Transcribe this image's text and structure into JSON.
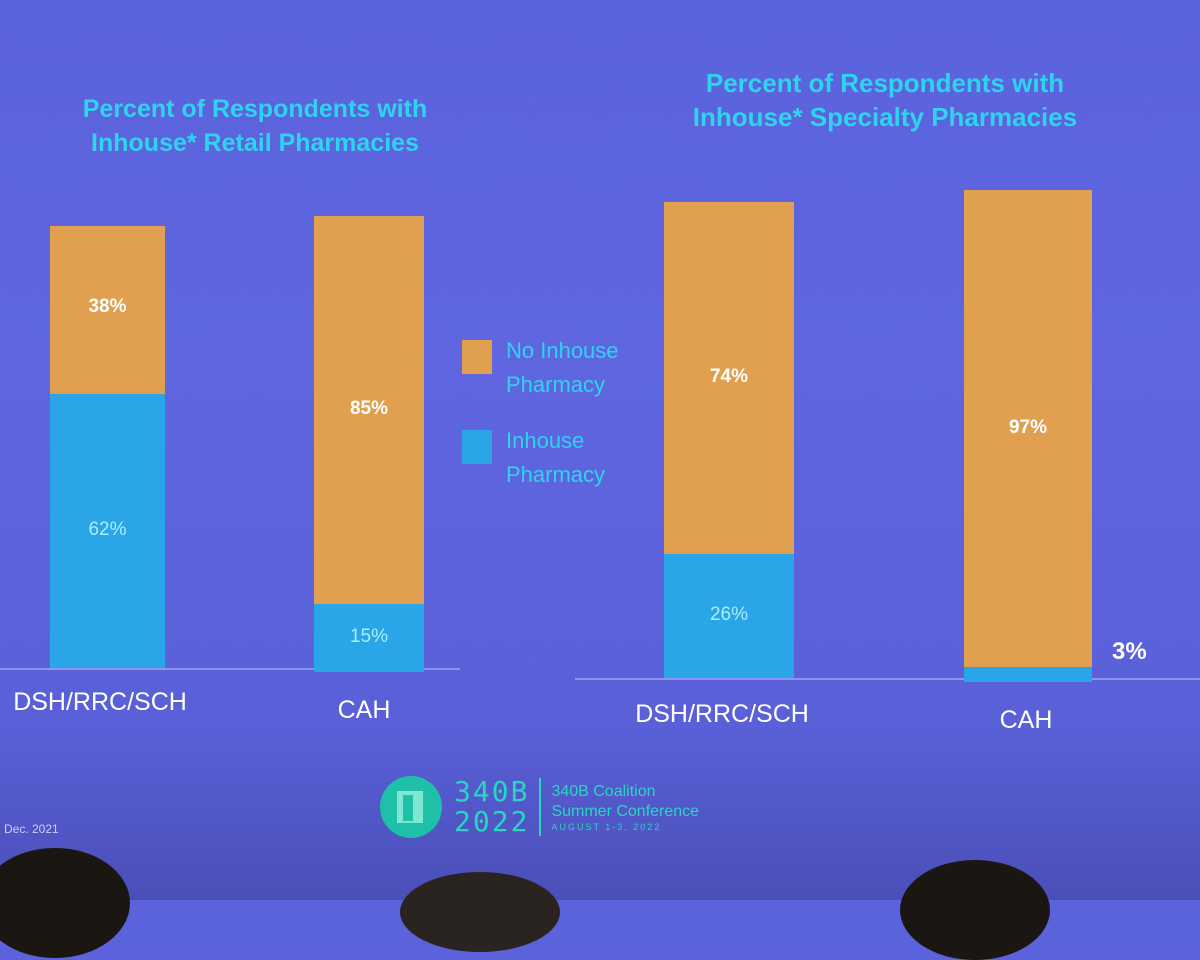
{
  "colors": {
    "no_inhouse": "#e0a050",
    "inhouse": "#2aa6e8",
    "title": "#2ed3ee"
  },
  "legend": {
    "items": [
      {
        "label": "No Inhouse\nPharmacy",
        "color": "#e0a050"
      },
      {
        "label": "Inhouse\nPharmacy",
        "color": "#2aa6e8"
      }
    ]
  },
  "chart_data": [
    {
      "type": "bar",
      "stacked": true,
      "title": "Percent of Respondents with\nInhouse* Retail Pharmacies",
      "categories": [
        "DSH/RRC/SCH",
        "CAH"
      ],
      "series": [
        {
          "name": "Inhouse Pharmacy",
          "values": [
            62,
            15
          ],
          "labels": [
            "62%",
            "15%"
          ]
        },
        {
          "name": "No Inhouse Pharmacy",
          "values": [
            38,
            85
          ],
          "labels": [
            "38%",
            "85%"
          ]
        }
      ],
      "ylim": [
        0,
        100
      ]
    },
    {
      "type": "bar",
      "stacked": true,
      "title": "Percent of Respondents with\nInhouse* Specialty Pharmacies",
      "categories": [
        "DSH/RRC/SCH",
        "CAH"
      ],
      "series": [
        {
          "name": "Inhouse Pharmacy",
          "values": [
            26,
            3
          ],
          "labels": [
            "26%",
            "3%"
          ]
        },
        {
          "name": "No Inhouse Pharmacy",
          "values": [
            74,
            97
          ],
          "labels": [
            "74%",
            "97%"
          ]
        }
      ],
      "ylim": [
        0,
        100
      ]
    }
  ],
  "footer": {
    "date_note": "Dec. 2021",
    "logo_number": "340B",
    "logo_year": "2022",
    "conference_line1": "340B Coalition",
    "conference_line2": "Summer Conference",
    "conference_dates": "AUGUST 1-3, 2022"
  }
}
